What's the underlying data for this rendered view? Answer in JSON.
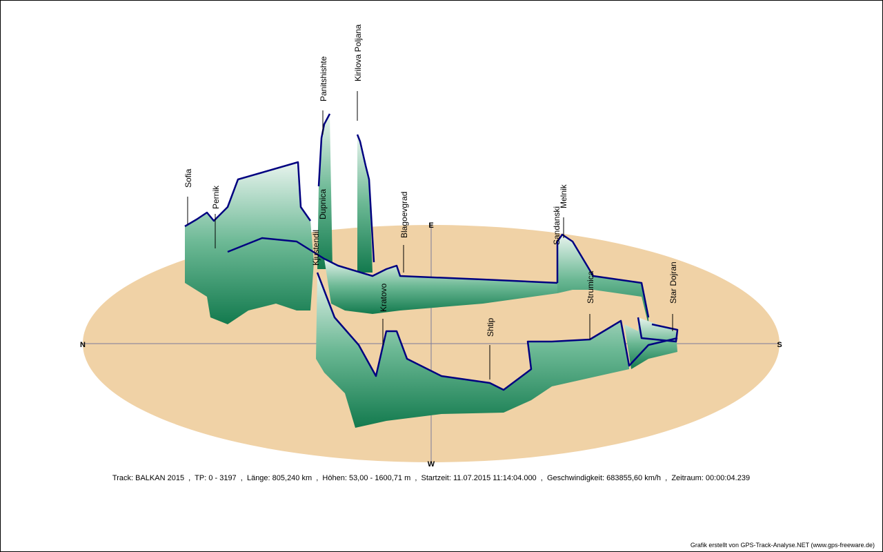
{
  "compass": {
    "north": "N",
    "south": "S",
    "east": "E",
    "west": "W"
  },
  "places": [
    "Sofia",
    "Pernik",
    "Panitshishte",
    "Kirilova Poljana",
    "Dupnica",
    "Kjustendil",
    "Blagoevgrad",
    "Kratovo",
    "Sandanski",
    "Melnik",
    "Strumica",
    "Star Dojran",
    "Shtip"
  ],
  "info": "Track: BALKAN 2015  ,  TP: 0 - 3197  ,  Länge: 805,240 km  ,  Höhen: 53,00 - 1600,71 m  ,  Startzeit: 11.07.2015 11:14:04.000  ,  Geschwindigkeit: 683855,60 km/h  ,  Zeitraum: 00:00:04.239",
  "credit": "Grafik erstellt von GPS-Track-Analyse.NET (www.gps-freeware.de)"
}
